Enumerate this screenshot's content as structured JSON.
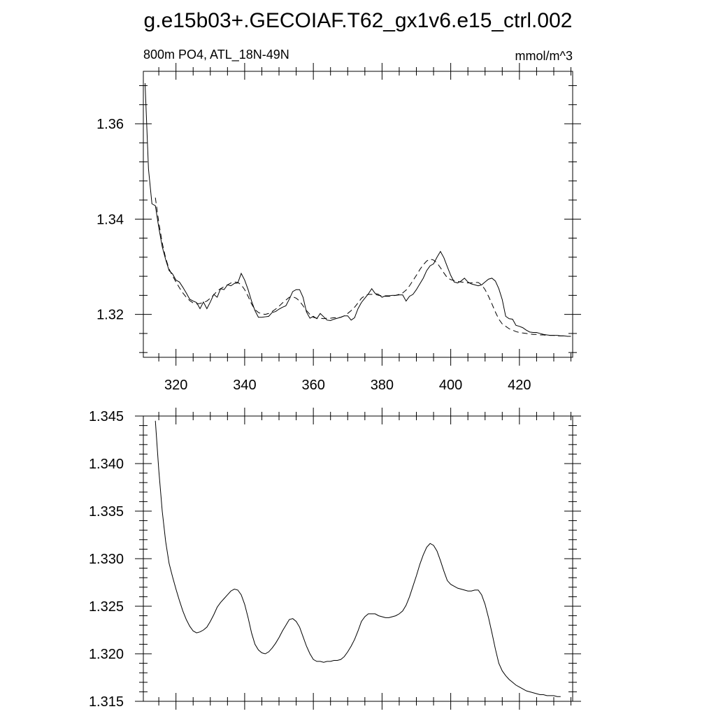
{
  "title": "g.e15b03+.GECOIAF.T62_gx1v6.e15_ctrl.002",
  "chart_data": [
    {
      "type": "line",
      "title": "800m PO4, ATL_18N-49N",
      "units": "mmol/m^3",
      "xlabel": "",
      "ylabel": "",
      "xlim": [
        310.5,
        435.5
      ],
      "ylim": [
        1.311,
        1.371
      ],
      "x_ticks": [
        320,
        340,
        360,
        380,
        400,
        420
      ],
      "y_ticks": [
        1.32,
        1.34,
        1.36
      ],
      "y_tick_labels": [
        "1.32",
        "1.34",
        "1.36"
      ],
      "grid": false,
      "series": [
        {
          "style": "solid",
          "x": [
            311,
            312,
            313,
            314,
            315,
            316,
            317,
            318,
            319,
            320,
            321,
            322,
            323,
            324,
            325,
            326,
            327,
            328,
            329,
            330,
            331,
            332,
            333,
            334,
            335,
            336,
            337,
            338,
            339,
            340,
            341,
            342,
            343,
            344,
            345,
            346,
            347,
            348,
            349,
            350,
            351,
            352,
            353,
            354,
            355,
            356,
            357,
            358,
            359,
            360,
            361,
            362,
            363,
            364,
            365,
            366,
            367,
            368,
            369,
            370,
            371,
            372,
            373,
            374,
            375,
            376,
            377,
            378,
            379,
            380,
            381,
            382,
            383,
            384,
            385,
            386,
            387,
            388,
            389,
            390,
            391,
            392,
            393,
            394,
            395,
            396,
            397,
            398,
            399,
            400,
            401,
            402,
            403,
            404,
            405,
            406,
            407,
            408,
            409,
            410,
            411,
            412,
            413,
            414,
            415,
            416,
            417,
            418,
            419,
            420,
            421,
            422,
            423,
            424,
            425,
            426,
            427,
            428,
            429,
            430,
            431,
            432,
            433,
            434,
            435
          ],
          "y": [
            1.3685,
            1.3505,
            1.3432,
            1.3428,
            1.3382,
            1.3342,
            1.3315,
            1.3292,
            1.3285,
            1.3272,
            1.3268,
            1.3257,
            1.3245,
            1.3232,
            1.3228,
            1.3225,
            1.3212,
            1.3226,
            1.3212,
            1.3226,
            1.3242,
            1.3236,
            1.3254,
            1.3252,
            1.3262,
            1.326,
            1.3265,
            1.3266,
            1.3286,
            1.3272,
            1.3252,
            1.3228,
            1.3208,
            1.3194,
            1.3194,
            1.3195,
            1.3196,
            1.3204,
            1.3206,
            1.3211,
            1.3215,
            1.3218,
            1.3232,
            1.3248,
            1.3252,
            1.3252,
            1.3236,
            1.3205,
            1.3192,
            1.3196,
            1.3191,
            1.3202,
            1.3195,
            1.3188,
            1.3187,
            1.319,
            1.3192,
            1.3194,
            1.3197,
            1.3197,
            1.3188,
            1.3193,
            1.3212,
            1.3225,
            1.3234,
            1.3243,
            1.3254,
            1.3244,
            1.3242,
            1.3236,
            1.3239,
            1.3239,
            1.324,
            1.324,
            1.3241,
            1.3241,
            1.3228,
            1.3238,
            1.3242,
            1.3252,
            1.3264,
            1.3276,
            1.3292,
            1.3302,
            1.3306,
            1.332,
            1.3332,
            1.3319,
            1.33,
            1.3282,
            1.3268,
            1.3266,
            1.327,
            1.3276,
            1.3268,
            1.3264,
            1.3262,
            1.326,
            1.3262,
            1.3268,
            1.3274,
            1.3276,
            1.327,
            1.3254,
            1.3231,
            1.3196,
            1.3191,
            1.319,
            1.3177,
            1.3175,
            1.3172,
            1.3167,
            1.3163,
            1.3162,
            1.3162,
            1.316,
            1.3158,
            1.3157,
            1.3156,
            1.3156,
            1.3156,
            1.3155,
            1.3155,
            1.3154,
            1.3154
          ]
        },
        {
          "style": "dashed",
          "x": [
            314,
            315,
            316,
            317,
            318,
            319,
            320,
            321,
            322,
            323,
            324,
            325,
            326,
            327,
            328,
            329,
            330,
            331,
            332,
            333,
            334,
            335,
            336,
            337,
            338,
            339,
            340,
            341,
            342,
            343,
            344,
            345,
            346,
            347,
            348,
            349,
            350,
            351,
            352,
            353,
            354,
            355,
            356,
            357,
            358,
            359,
            360,
            361,
            362,
            363,
            364,
            365,
            366,
            367,
            368,
            369,
            370,
            371,
            372,
            373,
            374,
            375,
            376,
            377,
            378,
            379,
            380,
            381,
            382,
            383,
            384,
            385,
            386,
            387,
            388,
            389,
            390,
            391,
            392,
            393,
            394,
            395,
            396,
            397,
            398,
            399,
            400,
            401,
            402,
            403,
            404,
            405,
            406,
            407,
            408,
            409,
            410,
            411,
            412,
            413,
            414,
            415,
            416,
            417,
            418,
            419,
            420,
            421,
            422,
            423,
            424,
            425,
            426,
            427,
            428,
            429,
            430,
            431,
            432,
            433,
            434,
            435
          ],
          "y": [
            1.3445,
            1.3393,
            1.335,
            1.3318,
            1.3295,
            1.3281,
            1.3268,
            1.3256,
            1.3245,
            1.3236,
            1.3229,
            1.3224,
            1.3222,
            1.3223,
            1.3225,
            1.3228,
            1.3234,
            1.3241,
            1.3249,
            1.3254,
            1.3258,
            1.3262,
            1.3266,
            1.3268,
            1.3267,
            1.3262,
            1.3252,
            1.3238,
            1.3222,
            1.321,
            1.3204,
            1.3201,
            1.32,
            1.3202,
            1.3206,
            1.3211,
            1.3217,
            1.3224,
            1.323,
            1.3236,
            1.3237,
            1.3234,
            1.3228,
            1.3218,
            1.3208,
            1.32,
            1.3194,
            1.3192,
            1.3192,
            1.3191,
            1.3192,
            1.3192,
            1.3193,
            1.3193,
            1.3194,
            1.3197,
            1.3202,
            1.3208,
            1.3215,
            1.3224,
            1.3234,
            1.3239,
            1.3242,
            1.3242,
            1.3242,
            1.324,
            1.3239,
            1.3238,
            1.3238,
            1.3239,
            1.324,
            1.3242,
            1.3245,
            1.3251,
            1.326,
            1.3271,
            1.3282,
            1.3294,
            1.3304,
            1.3312,
            1.3316,
            1.3314,
            1.3308,
            1.3298,
            1.3287,
            1.3277,
            1.3273,
            1.3271,
            1.3269,
            1.3268,
            1.3267,
            1.3266,
            1.3266,
            1.3267,
            1.3267,
            1.3262,
            1.3252,
            1.3238,
            1.3222,
            1.3205,
            1.319,
            1.318,
            1.3175,
            1.317,
            1.3167,
            1.3164,
            1.3162,
            1.3161,
            1.316,
            1.3159,
            1.3158,
            1.3158,
            1.3157,
            1.3157,
            1.3156,
            1.3156,
            1.3156,
            1.3155,
            1.3155,
            1.3155,
            1.3154,
            1.3154
          ]
        }
      ]
    },
    {
      "type": "line",
      "title": "",
      "xlabel": "",
      "ylabel": "",
      "xlim": [
        310.5,
        435.5
      ],
      "ylim": [
        1.315,
        1.345
      ],
      "x_ticks": [
        320,
        340,
        360,
        380,
        400,
        420
      ],
      "y_ticks": [
        1.315,
        1.32,
        1.325,
        1.33,
        1.335,
        1.34,
        1.345
      ],
      "y_tick_labels": [
        "1.315",
        "1.320",
        "1.325",
        "1.330",
        "1.335",
        "1.340",
        "1.345"
      ],
      "grid": false,
      "series": [
        {
          "style": "solid",
          "x": [
            314,
            315,
            316,
            317,
            318,
            319,
            320,
            321,
            322,
            323,
            324,
            325,
            326,
            327,
            328,
            329,
            330,
            331,
            332,
            333,
            334,
            335,
            336,
            337,
            338,
            339,
            340,
            341,
            342,
            343,
            344,
            345,
            346,
            347,
            348,
            349,
            350,
            351,
            352,
            353,
            354,
            355,
            356,
            357,
            358,
            359,
            360,
            361,
            362,
            363,
            364,
            365,
            366,
            367,
            368,
            369,
            370,
            371,
            372,
            373,
            374,
            375,
            376,
            377,
            378,
            379,
            380,
            381,
            382,
            383,
            384,
            385,
            386,
            387,
            388,
            389,
            390,
            391,
            392,
            393,
            394,
            395,
            396,
            397,
            398,
            399,
            400,
            401,
            402,
            403,
            404,
            405,
            406,
            407,
            408,
            409,
            410,
            411,
            412,
            413,
            414,
            415,
            416,
            417,
            418,
            419,
            420,
            421,
            422,
            423,
            424,
            425,
            426,
            427,
            428,
            429,
            430,
            431,
            432
          ],
          "y": [
            1.3445,
            1.3393,
            1.335,
            1.3318,
            1.3295,
            1.3281,
            1.3268,
            1.3256,
            1.3245,
            1.3236,
            1.3229,
            1.3224,
            1.3222,
            1.3223,
            1.3225,
            1.3228,
            1.3234,
            1.3241,
            1.3249,
            1.3254,
            1.3258,
            1.3262,
            1.3266,
            1.3268,
            1.3267,
            1.3262,
            1.3252,
            1.3238,
            1.3222,
            1.321,
            1.3204,
            1.3201,
            1.32,
            1.3202,
            1.3206,
            1.3211,
            1.3217,
            1.3224,
            1.323,
            1.3236,
            1.3237,
            1.3234,
            1.3228,
            1.3218,
            1.3208,
            1.32,
            1.3194,
            1.3192,
            1.3192,
            1.3191,
            1.3192,
            1.3192,
            1.3193,
            1.3193,
            1.3194,
            1.3197,
            1.3202,
            1.3208,
            1.3215,
            1.3224,
            1.3234,
            1.3239,
            1.3242,
            1.3242,
            1.3242,
            1.324,
            1.3239,
            1.3238,
            1.3238,
            1.3239,
            1.324,
            1.3242,
            1.3245,
            1.3251,
            1.326,
            1.3271,
            1.3282,
            1.3294,
            1.3304,
            1.3312,
            1.3316,
            1.3314,
            1.3308,
            1.3298,
            1.3287,
            1.3277,
            1.3273,
            1.3271,
            1.3269,
            1.3268,
            1.3267,
            1.3266,
            1.3266,
            1.3267,
            1.3267,
            1.3262,
            1.3252,
            1.3238,
            1.3222,
            1.3205,
            1.319,
            1.3182,
            1.3177,
            1.3173,
            1.317,
            1.3167,
            1.3165,
            1.3163,
            1.3161,
            1.316,
            1.3159,
            1.3158,
            1.3157,
            1.3157,
            1.3156,
            1.3156,
            1.3156,
            1.3155,
            1.3155
          ]
        }
      ]
    }
  ]
}
